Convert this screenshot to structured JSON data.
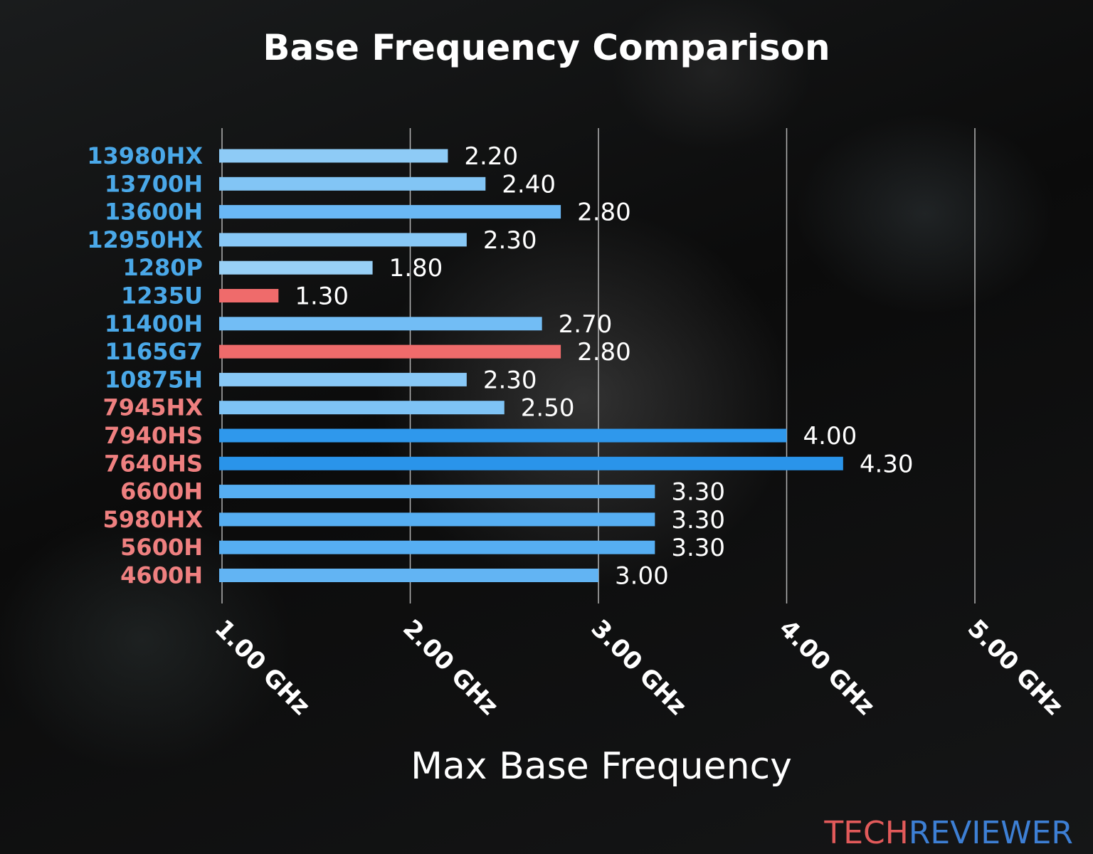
{
  "chart_data": {
    "type": "bar",
    "orientation": "horizontal",
    "title": "Base Frequency Comparison",
    "xlabel": "Max Base Frequency",
    "ylabel": "",
    "xlim": [
      1.0,
      5.0
    ],
    "xticks": [
      1.0,
      2.0,
      3.0,
      4.0,
      5.0
    ],
    "tick_labels": [
      "1.00 GHz",
      "2.00 GHz",
      "3.00 GHz",
      "4.00 GHz",
      "5.00 GHz"
    ],
    "grid": "vertical",
    "categories": [
      "13980HX",
      "13700H",
      "13600H",
      "12950HX",
      "1280P",
      "1235U",
      "11400H",
      "1165G7",
      "10875H",
      "7945HX",
      "7940HS",
      "7640HS",
      "6600H",
      "5980HX",
      "5600H",
      "4600H"
    ],
    "values": [
      2.2,
      2.4,
      2.8,
      2.3,
      1.8,
      1.3,
      2.7,
      2.8,
      2.3,
      2.5,
      4.0,
      4.3,
      3.3,
      3.3,
      3.3,
      3.0
    ],
    "value_labels": [
      "2.20",
      "2.40",
      "2.80",
      "2.30",
      "1.80",
      "1.30",
      "2.70",
      "2.80",
      "2.30",
      "2.50",
      "4.00",
      "4.30",
      "3.30",
      "3.30",
      "3.30",
      "3.00"
    ],
    "label_colors": [
      "#4aa8e8",
      "#4aa8e8",
      "#4aa8e8",
      "#4aa8e8",
      "#4aa8e8",
      "#4aa8e8",
      "#4aa8e8",
      "#4aa8e8",
      "#4aa8e8",
      "#ef8080",
      "#ef8080",
      "#ef8080",
      "#ef8080",
      "#ef8080",
      "#ef8080",
      "#ef8080"
    ],
    "bar_colors": [
      "#8ecbf6",
      "#82c5f5",
      "#6ab8f5",
      "#88c8f6",
      "#98d0f6",
      "#ef6b6b",
      "#72bdf5",
      "#ef6b6b",
      "#88c8f6",
      "#7ec3f5",
      "#2f98ec",
      "#2a94ea",
      "#56aef2",
      "#56aef2",
      "#56aef2",
      "#62b4f3"
    ]
  },
  "logo": {
    "part1": "TECH",
    "part2": "REVIEWER",
    "color1": "#e25a5a",
    "color2": "#3d7fd4"
  }
}
